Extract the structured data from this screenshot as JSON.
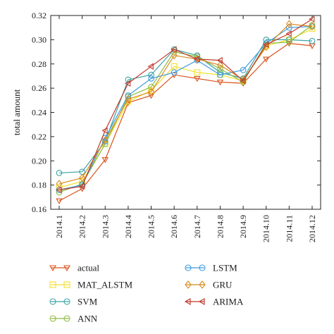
{
  "chart_data": {
    "type": "line",
    "ylabel": "total amount",
    "xlabel": "",
    "title": "",
    "ylim": [
      0.16,
      0.32
    ],
    "yticks": [
      "0.16",
      "0.18",
      "0.20",
      "0.22",
      "0.24",
      "0.26",
      "0.28",
      "0.30",
      "0.32"
    ],
    "categories": [
      "2014.1",
      "2014.2",
      "2014.3",
      "2014.4",
      "2014.5",
      "2014.6",
      "2014.7",
      "2014.8",
      "2014.9",
      "2014.10",
      "2014.11",
      "2014.12"
    ],
    "grid": false,
    "legend_position": "bottom",
    "series": [
      {
        "name": "actual",
        "color": "#d9541e",
        "marker": "triangle-down",
        "values": [
          0.167,
          0.177,
          0.201,
          0.248,
          0.254,
          0.271,
          0.268,
          0.265,
          0.264,
          0.284,
          0.297,
          0.295
        ]
      },
      {
        "name": "MAT_ALSTM",
        "color": "#f2e12b",
        "marker": "square",
        "values": [
          0.178,
          0.183,
          0.214,
          0.249,
          0.258,
          0.278,
          0.273,
          0.271,
          0.266,
          0.295,
          0.3,
          0.309
        ]
      },
      {
        "name": "SVM",
        "color": "#3aa3a3",
        "marker": "circle",
        "values": [
          0.19,
          0.191,
          0.216,
          0.267,
          0.271,
          0.292,
          0.287,
          0.273,
          0.268,
          0.3,
          0.3,
          0.299
        ]
      },
      {
        "name": "ANN",
        "color": "#8dbb3e",
        "marker": "circle",
        "values": [
          0.174,
          0.181,
          0.214,
          0.253,
          0.261,
          0.29,
          0.286,
          0.276,
          0.265,
          0.297,
          0.298,
          0.312
        ]
      },
      {
        "name": "LSTM",
        "color": "#3f9be0",
        "marker": "circle",
        "values": [
          0.176,
          0.18,
          0.219,
          0.254,
          0.268,
          0.273,
          0.283,
          0.271,
          0.275,
          0.297,
          0.31,
          0.311
        ]
      },
      {
        "name": "GRU",
        "color": "#d88a1e",
        "marker": "diamond",
        "values": [
          0.181,
          0.186,
          0.217,
          0.251,
          0.257,
          0.287,
          0.284,
          0.279,
          0.267,
          0.294,
          0.313,
          0.311
        ]
      },
      {
        "name": "ARIMA",
        "color": "#c0392b",
        "marker": "triangle-left",
        "values": [
          0.176,
          0.179,
          0.225,
          0.264,
          0.278,
          0.292,
          0.284,
          0.283,
          0.266,
          0.296,
          0.305,
          0.317
        ]
      }
    ]
  }
}
